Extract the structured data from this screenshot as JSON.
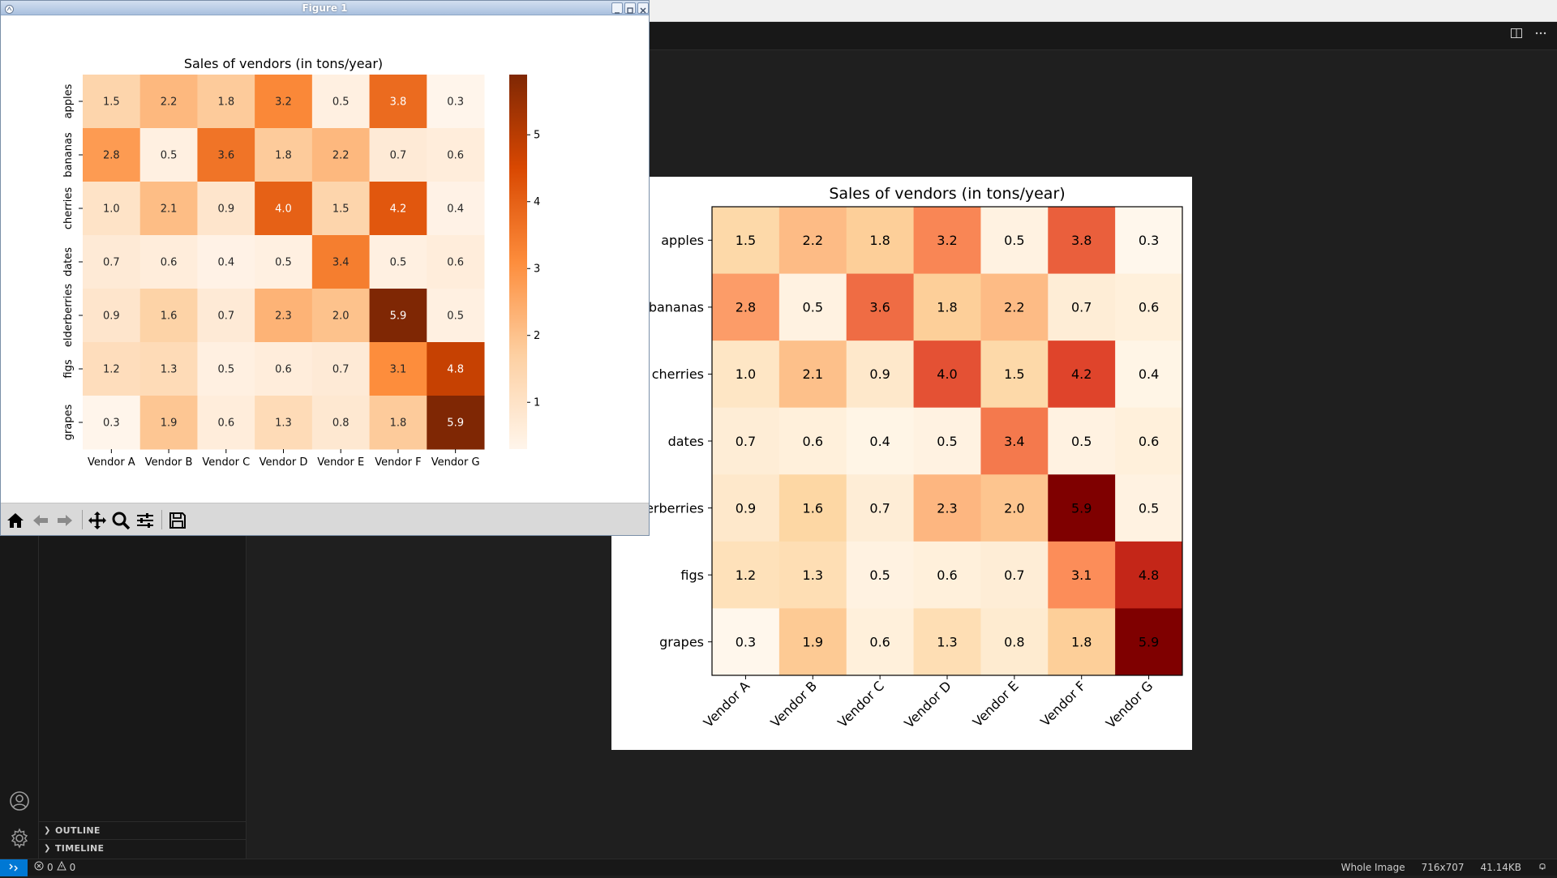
{
  "vscode": {
    "status_remote_icon": "remote-icon",
    "errors": "0",
    "warnings": "0",
    "status_right": [
      "Whole Image",
      "716x707",
      "41.14KB"
    ],
    "sidebar_sections": [
      "OUTLINE",
      "TIMELINE"
    ],
    "tab_actions": [
      "split-editor-icon",
      "more-actions-icon"
    ]
  },
  "figure_window": {
    "title": "Figure 1",
    "toolbar_icons": [
      "home-icon",
      "back-icon",
      "forward-icon",
      "pan-icon",
      "zoom-icon",
      "configure-subplots-icon",
      "save-icon"
    ]
  },
  "chart_data": [
    {
      "type": "heatmap",
      "title": "Sales of vendors (in tons/year)",
      "x_categories": [
        "Vendor A",
        "Vendor B",
        "Vendor C",
        "Vendor D",
        "Vendor E",
        "Vendor F",
        "Vendor G"
      ],
      "y_categories": [
        "apples",
        "bananas",
        "cherries",
        "dates",
        "elderberries",
        "figs",
        "grapes"
      ],
      "values": [
        [
          1.5,
          2.2,
          1.8,
          3.2,
          0.5,
          3.8,
          0.3
        ],
        [
          2.8,
          0.5,
          3.6,
          1.8,
          2.2,
          0.7,
          0.6
        ],
        [
          1.0,
          2.1,
          0.9,
          4.0,
          1.5,
          4.2,
          0.4
        ],
        [
          0.7,
          0.6,
          0.4,
          0.5,
          3.4,
          0.5,
          0.6
        ],
        [
          0.9,
          1.6,
          0.7,
          2.3,
          2.0,
          5.9,
          0.5
        ],
        [
          1.2,
          1.3,
          0.5,
          0.6,
          0.7,
          3.1,
          4.8
        ],
        [
          0.3,
          1.9,
          0.6,
          1.3,
          0.8,
          1.8,
          5.9
        ]
      ],
      "colormap": "Oranges",
      "colorbar": true,
      "colorbar_ticks": [
        1,
        2,
        3,
        4,
        5
      ],
      "vmin": 0.3,
      "vmax": 5.9
    },
    {
      "type": "heatmap",
      "title": "Sales of vendors (in tons/year)",
      "x_categories": [
        "Vendor A",
        "Vendor B",
        "Vendor C",
        "Vendor D",
        "Vendor E",
        "Vendor F",
        "Vendor G"
      ],
      "y_categories": [
        "apples",
        "bananas",
        "cherries",
        "dates",
        "elderberries",
        "figs",
        "grapes"
      ],
      "values": [
        [
          1.5,
          2.2,
          1.8,
          3.2,
          0.5,
          3.8,
          0.3
        ],
        [
          2.8,
          0.5,
          3.6,
          1.8,
          2.2,
          0.7,
          0.6
        ],
        [
          1.0,
          2.1,
          0.9,
          4.0,
          1.5,
          4.2,
          0.4
        ],
        [
          0.7,
          0.6,
          0.4,
          0.5,
          3.4,
          0.5,
          0.6
        ],
        [
          0.9,
          1.6,
          0.7,
          2.3,
          2.0,
          5.9,
          0.5
        ],
        [
          1.2,
          1.3,
          0.5,
          0.6,
          0.7,
          3.1,
          4.8
        ],
        [
          0.3,
          1.9,
          0.6,
          1.3,
          0.8,
          1.8,
          5.9
        ]
      ],
      "colormap": "OrRd",
      "colorbar": false,
      "vmin": 0.3,
      "vmax": 5.9
    }
  ]
}
